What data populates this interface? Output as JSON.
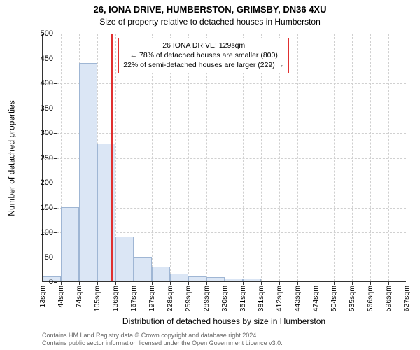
{
  "title": "26, IONA DRIVE, HUMBERSTON, GRIMSBY, DN36 4XU",
  "subtitle": "Size of property relative to detached houses in Humberston",
  "y_axis": {
    "label": "Number of detached properties",
    "min": 0,
    "max": 500,
    "step": 50
  },
  "x_axis": {
    "label": "Distribution of detached houses by size in Humberston",
    "unit": "sqm",
    "start": 13,
    "step": 30.7,
    "count": 21
  },
  "chart": {
    "type": "histogram",
    "bar_fill": "#dbe6f5",
    "bar_border": "#9fb6d4",
    "grid_color": "#d0d0d0",
    "background": "#ffffff",
    "values": [
      10,
      150,
      440,
      278,
      90,
      50,
      30,
      15,
      10,
      8,
      6,
      5,
      0,
      0,
      0,
      0,
      0,
      0,
      0,
      0
    ]
  },
  "reference": {
    "color": "#e03030",
    "value_sqm": 129,
    "box": {
      "line1": "26 IONA DRIVE: 129sqm",
      "line2": "← 78% of detached houses are smaller (800)",
      "line3": "22% of semi-detached houses are larger (229) →"
    }
  },
  "footer": {
    "line1": "Contains HM Land Registry data © Crown copyright and database right 2024.",
    "line2": "Contains public sector information licensed under the Open Government Licence v3.0."
  }
}
